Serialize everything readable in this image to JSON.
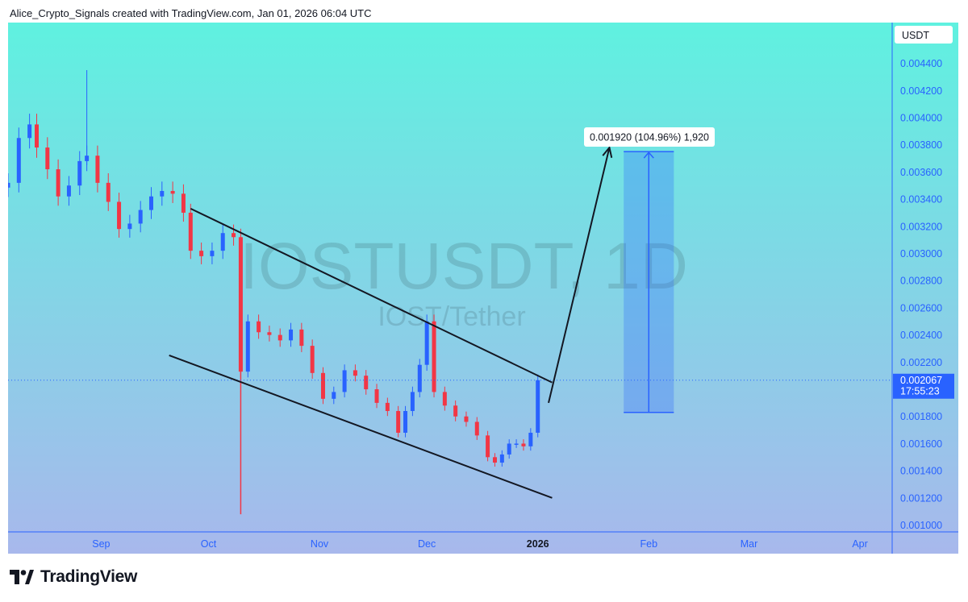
{
  "header": {
    "attribution": "Alice_Crypto_Signals created with TradingView.com, Jan 01, 2026 06:04 UTC"
  },
  "footer": {
    "brand": "TradingView",
    "logo_icon": "tradingview-logo-icon"
  },
  "colors": {
    "bg_top": "#5ff1e0",
    "bg_bottom": "#a8b8ec",
    "up": "#2962ff",
    "down": "#f23645",
    "axis": "#2962ff",
    "trendline": "#131722",
    "projection": "#2962ff"
  },
  "chart_data": {
    "type": "candlestick",
    "watermark": {
      "symbol": "IOSTUSDT, 1D",
      "description": "IOST/Tether"
    },
    "currency": "USDT",
    "ylim": [
      0.00095,
      0.0047
    ],
    "y_ticks": [
      "0.004400",
      "0.004200",
      "0.004000",
      "0.003800",
      "0.003600",
      "0.003400",
      "0.003200",
      "0.003000",
      "0.002800",
      "0.002600",
      "0.002400",
      "0.002200",
      "0.001800",
      "0.001600",
      "0.001400",
      "0.001200",
      "0.001000"
    ],
    "x_ticks": [
      {
        "label": "Sep",
        "date": "2025-09-01",
        "bold": false
      },
      {
        "label": "Oct",
        "date": "2025-10-01",
        "bold": false
      },
      {
        "label": "Nov",
        "date": "2025-11-01",
        "bold": false
      },
      {
        "label": "Dec",
        "date": "2025-12-01",
        "bold": false
      },
      {
        "label": "2026",
        "date": "2026-01-01",
        "bold": true
      },
      {
        "label": "Feb",
        "date": "2026-02-01",
        "bold": false
      },
      {
        "label": "Mar",
        "date": "2026-03-01",
        "bold": false
      },
      {
        "label": "Apr",
        "date": "2026-04-01",
        "bold": false
      }
    ],
    "xlim": [
      "2025-08-06",
      "2026-04-10"
    ],
    "last_price": {
      "value": 0.002067,
      "label": "0.002067",
      "countdown": "17:55:23"
    },
    "candles_close": [
      {
        "date": "2025-08-06",
        "close": 0.00352
      },
      {
        "date": "2025-08-09",
        "close": 0.00385
      },
      {
        "date": "2025-08-12",
        "close": 0.00395
      },
      {
        "date": "2025-08-14",
        "close": 0.00378
      },
      {
        "date": "2025-08-17",
        "close": 0.00362
      },
      {
        "date": "2025-08-20",
        "close": 0.00342
      },
      {
        "date": "2025-08-23",
        "close": 0.0035
      },
      {
        "date": "2025-08-26",
        "close": 0.00368
      },
      {
        "date": "2025-08-28",
        "close": 0.00372
      },
      {
        "date": "2025-08-31",
        "close": 0.00352
      },
      {
        "date": "2025-09-03",
        "close": 0.00338
      },
      {
        "date": "2025-09-06",
        "close": 0.00318
      },
      {
        "date": "2025-09-09",
        "close": 0.00322
      },
      {
        "date": "2025-09-12",
        "close": 0.00332
      },
      {
        "date": "2025-09-15",
        "close": 0.00342
      },
      {
        "date": "2025-09-18",
        "close": 0.00346
      },
      {
        "date": "2025-09-21",
        "close": 0.00344
      },
      {
        "date": "2025-09-24",
        "close": 0.0033
      },
      {
        "date": "2025-09-26",
        "close": 0.00302
      },
      {
        "date": "2025-09-29",
        "close": 0.00298
      },
      {
        "date": "2025-10-02",
        "close": 0.00302
      },
      {
        "date": "2025-10-05",
        "close": 0.00315
      },
      {
        "date": "2025-10-08",
        "close": 0.00312
      },
      {
        "date": "2025-10-10",
        "close": 0.00213
      },
      {
        "date": "2025-10-12",
        "close": 0.0025
      },
      {
        "date": "2025-10-15",
        "close": 0.00242
      },
      {
        "date": "2025-10-18",
        "close": 0.0024
      },
      {
        "date": "2025-10-21",
        "close": 0.00236
      },
      {
        "date": "2025-10-24",
        "close": 0.00244
      },
      {
        "date": "2025-10-27",
        "close": 0.00232
      },
      {
        "date": "2025-10-30",
        "close": 0.00212
      },
      {
        "date": "2025-11-02",
        "close": 0.00193
      },
      {
        "date": "2025-11-05",
        "close": 0.00198
      },
      {
        "date": "2025-11-08",
        "close": 0.00214
      },
      {
        "date": "2025-11-11",
        "close": 0.0021
      },
      {
        "date": "2025-11-14",
        "close": 0.002
      },
      {
        "date": "2025-11-17",
        "close": 0.0019
      },
      {
        "date": "2025-11-20",
        "close": 0.00184
      },
      {
        "date": "2025-11-23",
        "close": 0.00168
      },
      {
        "date": "2025-11-25",
        "close": 0.00184
      },
      {
        "date": "2025-11-27",
        "close": 0.00198
      },
      {
        "date": "2025-11-29",
        "close": 0.00218
      },
      {
        "date": "2025-12-01",
        "close": 0.0025
      },
      {
        "date": "2025-12-03",
        "close": 0.00198
      },
      {
        "date": "2025-12-06",
        "close": 0.00188
      },
      {
        "date": "2025-12-09",
        "close": 0.0018
      },
      {
        "date": "2025-12-12",
        "close": 0.00176
      },
      {
        "date": "2025-12-15",
        "close": 0.00166
      },
      {
        "date": "2025-12-18",
        "close": 0.0015
      },
      {
        "date": "2025-12-20",
        "close": 0.00146
      },
      {
        "date": "2025-12-22",
        "close": 0.00152
      },
      {
        "date": "2025-12-24",
        "close": 0.0016
      },
      {
        "date": "2025-12-26",
        "close": 0.0016
      },
      {
        "date": "2025-12-28",
        "close": 0.00158
      },
      {
        "date": "2025-12-30",
        "close": 0.00168
      },
      {
        "date": "2026-01-01",
        "close": 0.002067
      }
    ],
    "annotations": {
      "measure_label": "0.001920 (104.96%) 1,920",
      "measure_range": [
        0.00183,
        0.00375
      ],
      "channel_upper": [
        [
          "2025-09-26",
          0.00333
        ],
        [
          "2026-01-05",
          0.00205
        ]
      ],
      "channel_lower": [
        [
          "2025-09-20",
          0.00225
        ],
        [
          "2026-01-05",
          0.0012
        ]
      ],
      "arrow": [
        [
          "2026-01-04",
          0.0019
        ],
        [
          "2026-01-21",
          0.00378
        ]
      ]
    }
  }
}
